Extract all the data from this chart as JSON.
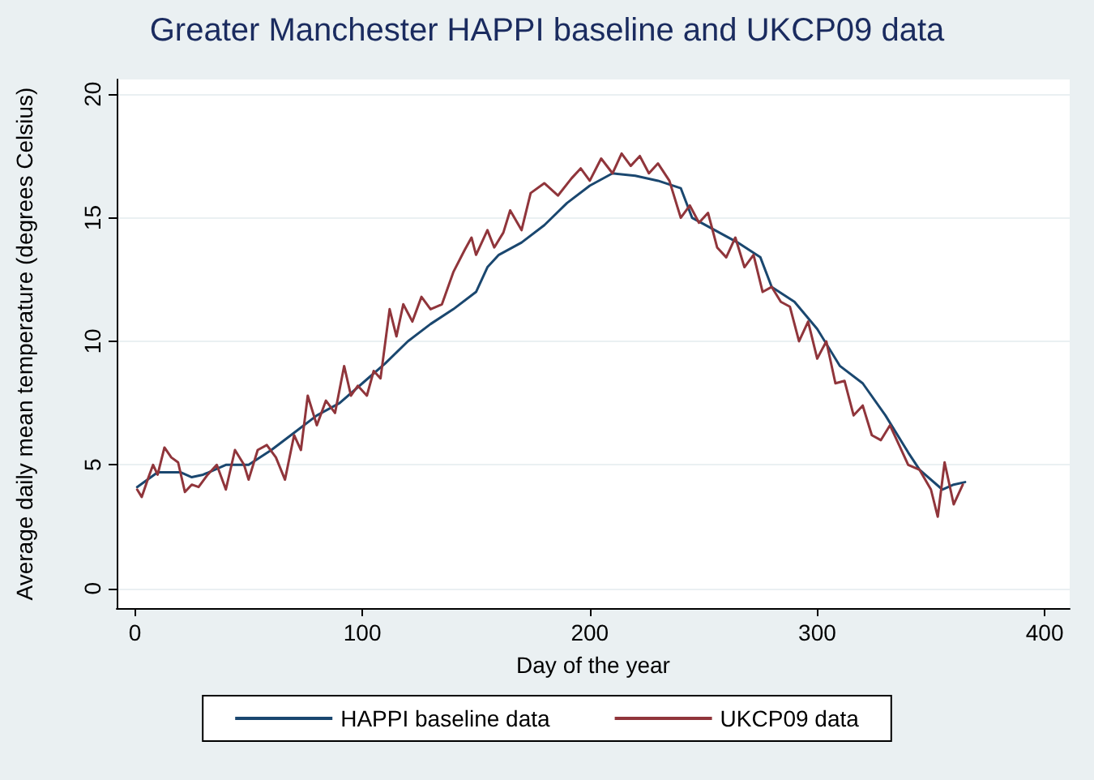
{
  "chart_data": {
    "type": "line",
    "title": "Greater Manchester HAPPI baseline and UKCP09 data",
    "xlabel": "Day of the year",
    "ylabel": "Average daily mean temperature (degrees Celsius)",
    "xlim": [
      -8,
      411
    ],
    "xticks": [
      0,
      100,
      200,
      300,
      400
    ],
    "ylim": [
      -0.8,
      20.6
    ],
    "yticks": [
      0,
      5,
      10,
      15,
      20
    ],
    "grid": "y",
    "legend": "bottom",
    "marker": "none",
    "line_style": "solid",
    "series": [
      {
        "name": "HAPPI baseline data",
        "color": "#1a476f",
        "x": [
          1,
          10,
          20,
          25,
          30,
          40,
          50,
          60,
          70,
          80,
          90,
          100,
          110,
          120,
          130,
          140,
          150,
          155,
          160,
          170,
          180,
          190,
          200,
          210,
          220,
          230,
          240,
          245,
          255,
          265,
          275,
          280,
          290,
          300,
          310,
          320,
          330,
          340,
          345,
          355,
          360,
          365
        ],
        "values": [
          4.1,
          4.7,
          4.7,
          4.5,
          4.6,
          5.0,
          5.0,
          5.6,
          6.3,
          7.0,
          7.5,
          8.3,
          9.1,
          10.0,
          10.7,
          11.3,
          12.0,
          13.0,
          13.5,
          14.0,
          14.7,
          15.6,
          16.3,
          16.8,
          16.7,
          16.5,
          16.2,
          15.0,
          14.5,
          14.0,
          13.4,
          12.2,
          11.6,
          10.5,
          9.0,
          8.3,
          7.0,
          5.5,
          4.8,
          4.0,
          4.2,
          4.3
        ]
      },
      {
        "name": "UKCP09 data",
        "color": "#90353b",
        "x": [
          1,
          3,
          6,
          8,
          10,
          13,
          16,
          19,
          22,
          25,
          28,
          32,
          36,
          40,
          44,
          48,
          50,
          54,
          58,
          62,
          66,
          70,
          73,
          76,
          80,
          84,
          88,
          92,
          95,
          98,
          102,
          105,
          108,
          112,
          115,
          118,
          122,
          126,
          130,
          135,
          140,
          145,
          148,
          150,
          155,
          158,
          162,
          165,
          170,
          174,
          180,
          186,
          192,
          196,
          200,
          205,
          210,
          214,
          218,
          222,
          226,
          230,
          235,
          240,
          244,
          248,
          252,
          256,
          260,
          264,
          268,
          272,
          276,
          280,
          284,
          288,
          292,
          296,
          300,
          304,
          308,
          312,
          316,
          320,
          324,
          328,
          332,
          336,
          340,
          345,
          350,
          353,
          356,
          360,
          364
        ],
        "values": [
          4.0,
          3.7,
          4.5,
          5.0,
          4.6,
          5.7,
          5.3,
          5.1,
          3.9,
          4.2,
          4.1,
          4.6,
          5.0,
          4.0,
          5.6,
          5.0,
          4.4,
          5.6,
          5.8,
          5.3,
          4.4,
          6.2,
          5.6,
          7.8,
          6.6,
          7.6,
          7.1,
          9.0,
          7.8,
          8.2,
          7.8,
          8.8,
          8.5,
          11.3,
          10.2,
          11.5,
          10.8,
          11.8,
          11.3,
          11.5,
          12.8,
          13.7,
          14.2,
          13.5,
          14.5,
          13.8,
          14.4,
          15.3,
          14.5,
          16.0,
          16.4,
          15.9,
          16.6,
          17.0,
          16.5,
          17.4,
          16.8,
          17.6,
          17.1,
          17.5,
          16.8,
          17.2,
          16.5,
          15.0,
          15.5,
          14.8,
          15.2,
          13.8,
          13.4,
          14.2,
          13.0,
          13.5,
          12.0,
          12.2,
          11.6,
          11.4,
          10.0,
          10.8,
          9.3,
          10.0,
          8.3,
          8.4,
          7.0,
          7.4,
          6.2,
          6.0,
          6.6,
          5.8,
          5.0,
          4.8,
          4.0,
          2.9,
          5.1,
          3.4,
          4.2
        ]
      }
    ]
  }
}
